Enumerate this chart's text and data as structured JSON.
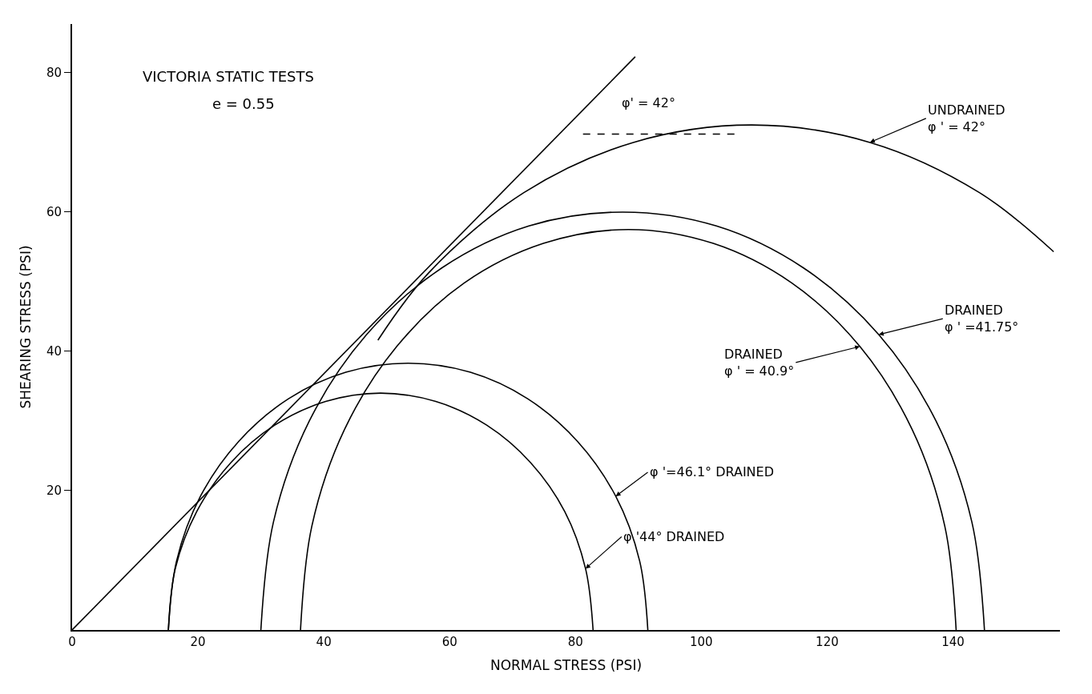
{
  "chart_data": {
    "type": "line",
    "title": "VICTORIA STATIC TESTS",
    "subtitle": "e = 0.55",
    "xlabel": "NORMAL STRESS (PSI)",
    "ylabel": "SHEARING STRESS (PSI)",
    "xlim": [
      0,
      157
    ],
    "ylim": [
      0,
      87
    ],
    "xticks": [
      0,
      20,
      40,
      60,
      80,
      100,
      120,
      140
    ],
    "yticks": [
      20,
      40,
      60,
      80
    ],
    "grid": false,
    "marker": "none",
    "line_style": "solid",
    "series": [
      {
        "color": "#000000",
        "x": [
          0,
          89.5
        ],
        "values": [
          0,
          82.3
        ]
      },
      {
        "color": "#000000",
        "x": [
          82.8,
          81.6,
          78.3,
          72.9,
          65.9,
          57.8,
          49.0,
          40.3,
          32.2,
          25.2,
          19.8,
          16.4,
          15.3
        ],
        "values": [
          0,
          8.8,
          17.0,
          24.0,
          29.4,
          32.8,
          34.0,
          32.8,
          29.4,
          24.0,
          17.0,
          8.8,
          0
        ]
      },
      {
        "color": "#000000",
        "x": [
          91.5,
          90.2,
          86.4,
          80.3,
          72.4,
          63.3,
          53.4,
          43.5,
          34.4,
          26.5,
          20.4,
          16.6,
          15.3
        ],
        "values": [
          0,
          9.9,
          19.2,
          27.1,
          33.2,
          37.0,
          38.3,
          37.0,
          33.2,
          27.1,
          19.2,
          9.9,
          0
        ]
      },
      {
        "color": "#000000",
        "x": [
          140.5,
          138.7,
          133.5,
          125.2,
          114.4,
          101.9,
          88.4,
          74.9,
          62.3,
          51.6,
          43.3,
          38.1,
          36.3
        ],
        "values": [
          0,
          14.9,
          28.8,
          40.7,
          49.8,
          55.5,
          57.5,
          55.5,
          49.8,
          40.7,
          28.8,
          14.9,
          0
        ]
      },
      {
        "color": "#000000",
        "x": [
          145,
          143,
          137.3,
          128.2,
          116.2,
          102.4,
          87.5,
          72.6,
          58.8,
          46.8,
          37.7,
          32,
          30
        ],
        "values": [
          0,
          15.5,
          30.0,
          42.4,
          52.0,
          58.0,
          60.0,
          58.0,
          52.0,
          42.4,
          30.0,
          15.5,
          0
        ]
      },
      {
        "color": "#000000",
        "x": [
          156,
          144.2,
          126.8,
          108,
          89.2,
          71.8,
          56.7,
          48.6
        ],
        "values": [
          54.3,
          62.8,
          70.0,
          72.5,
          70.0,
          62.8,
          51.3,
          41.6
        ]
      },
      {
        "color": "#000000",
        "line_style": "dashed",
        "x": [
          81.2,
          105.6
        ],
        "values": [
          71.2,
          71.2
        ]
      }
    ],
    "annotations": [
      "φ' = 42°",
      {
        "text": "UNDRAINED\nφ ' = 42°",
        "x": 126.8,
        "y": 70.0
      },
      {
        "text": "DRAINED\nφ ' =41.75°",
        "x": 128.2,
        "y": 42.4
      },
      {
        "text": "DRAINED\nφ ' = 40.9°",
        "x": 125.2,
        "y": 40.7
      },
      {
        "text": "φ '=46.1° DRAINED",
        "x": 86.4,
        "y": 19.2
      },
      {
        "text": "φ '44° DRAINED",
        "x": 81.6,
        "y": 8.8
      }
    ]
  }
}
